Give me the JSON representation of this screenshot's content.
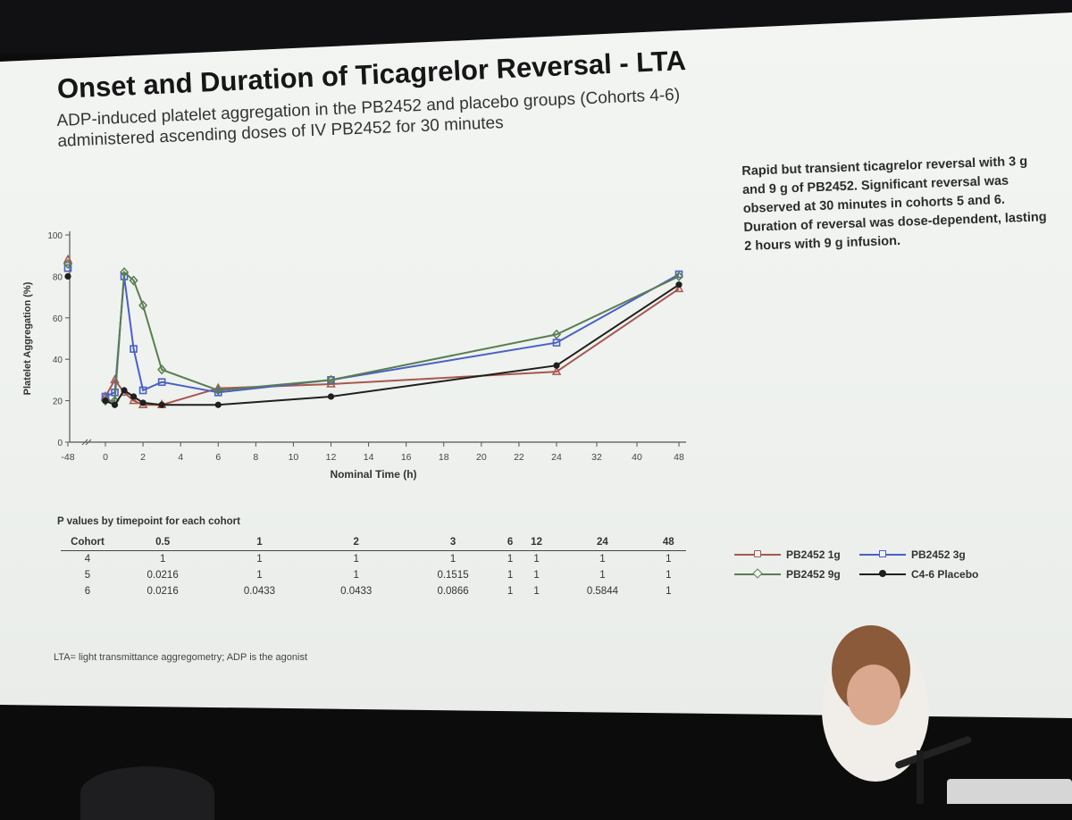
{
  "slide": {
    "title": "Onset and Duration of Ticagrelor Reversal - LTA",
    "subtitle_line1": "ADP-induced platelet aggregation in the PB2452 and placebo groups (Cohorts 4-6)",
    "subtitle_line2": "administered ascending doses of IV PB2452 for 30 minutes",
    "note": "Rapid but transient ticagrelor reversal with 3 g and 9 g of PB2452. Significant reversal was observed at 30 minutes in cohorts 5 and 6. Duration of reversal was dose-dependent, lasting 2 hours with 9 g infusion.",
    "footnote": "LTA= light transmittance aggregometry; ADP is the agonist"
  },
  "chart_data": {
    "type": "line",
    "xlabel": "Nominal Time (h)",
    "ylabel": "Platelet Aggregation (%)",
    "ylim": [
      0,
      100
    ],
    "yticks": [
      0,
      20,
      40,
      60,
      80,
      100
    ],
    "xticks": [
      "-48",
      "0",
      "2",
      "4",
      "6",
      "8",
      "10",
      "12",
      "14",
      "16",
      "18",
      "20",
      "22",
      "24",
      "32",
      "40",
      "48"
    ],
    "x": [
      -48,
      0,
      0.5,
      1,
      1.5,
      2,
      3,
      6,
      12,
      24,
      48
    ],
    "series": [
      {
        "name": "PB2452 1g",
        "color": "#a8574e",
        "marker": "triangle",
        "values": [
          88,
          22,
          30,
          24,
          20,
          18,
          18,
          26,
          28,
          34,
          74
        ]
      },
      {
        "name": "PB2452 3g",
        "color": "#4a5fc9",
        "marker": "square",
        "values": [
          84,
          22,
          24,
          80,
          45,
          25,
          29,
          24,
          30,
          48,
          81
        ]
      },
      {
        "name": "PB2452 9g",
        "color": "#5a7d52",
        "marker": "diamond",
        "values": [
          86,
          20,
          20,
          82,
          78,
          66,
          35,
          25,
          30,
          52,
          80
        ]
      },
      {
        "name": "C4-6 Placebo",
        "color": "#1f1f1f",
        "marker": "circle",
        "values": [
          80,
          20,
          18,
          25,
          22,
          19,
          18,
          18,
          22,
          37,
          76
        ]
      }
    ]
  },
  "pvalues": {
    "title": "P values by timepoint for each cohort",
    "headers": [
      "Cohort",
      "0.5",
      "1",
      "2",
      "3",
      "6",
      "12",
      "24",
      "48"
    ],
    "rows": [
      [
        "4",
        "1",
        "1",
        "1",
        "1",
        "1",
        "1",
        "1",
        "1"
      ],
      [
        "5",
        "0.0216",
        "1",
        "1",
        "0.1515",
        "1",
        "1",
        "1",
        "1"
      ],
      [
        "6",
        "0.0216",
        "0.0433",
        "0.0433",
        "0.0866",
        "1",
        "1",
        "0.5844",
        "1"
      ]
    ]
  }
}
